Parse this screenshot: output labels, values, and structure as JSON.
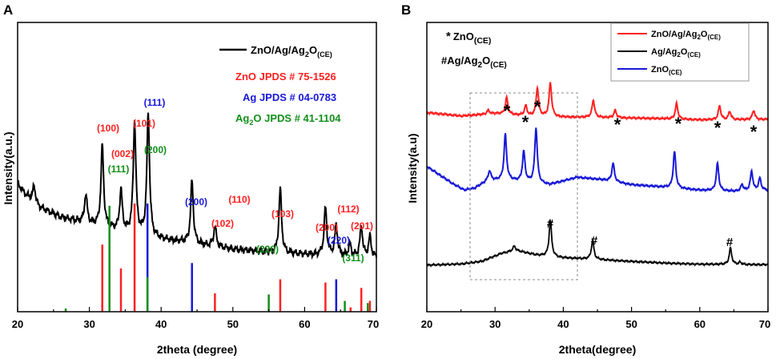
{
  "panels": {
    "A": {
      "letter": "A",
      "xlabel": "2theta (degree)",
      "ylabel": "Intensity(a.u.)",
      "xticks": [
        "20",
        "30",
        "40",
        "50",
        "60",
        "70"
      ],
      "legend": {
        "sample": {
          "base": "ZnO/Ag/Ag",
          "sub1": "2",
          "mid": "O",
          "sub2": "(CE)"
        },
        "refs": [
          {
            "text": "ZnO JPDS # 75-1526",
            "color": "#ff2020"
          },
          {
            "text": "Ag JPDS # 04-0783",
            "color": "#1818d8"
          },
          {
            "base": "Ag",
            "sub": "2",
            "rest": "O JPDS # 41-1104",
            "color": "#11901a"
          }
        ]
      },
      "peak_labels": [
        {
          "text": "(111)",
          "color": "#1818d8"
        },
        {
          "text": "(100)",
          "color": "#ff2020"
        },
        {
          "text": "(101)",
          "color": "#ff2020"
        },
        {
          "text": "(002)",
          "color": "#ff2020"
        },
        {
          "text": "(200)",
          "color": "#11901a"
        },
        {
          "text": "(111)",
          "color": "#11901a"
        },
        {
          "text": "(200)",
          "color": "#1818d8"
        },
        {
          "text": "(110)",
          "color": "#ff2020"
        },
        {
          "text": "(102)",
          "color": "#ff2020"
        },
        {
          "text": "(103)",
          "color": "#ff2020"
        },
        {
          "text": "(112)",
          "color": "#ff2020"
        },
        {
          "text": "(200)",
          "color": "#ff2020"
        },
        {
          "text": "(201)",
          "color": "#ff2020"
        },
        {
          "text": "(220)",
          "color": "#11901a"
        },
        {
          "text": "(220)",
          "color": "#1818d8"
        },
        {
          "text": "(311)",
          "color": "#11901a"
        }
      ]
    },
    "B": {
      "letter": "B",
      "xlabel": "2theta(degree)",
      "ylabel": "Intensity(a.u)",
      "xticks": [
        "20",
        "30",
        "40",
        "50",
        "60",
        "70"
      ],
      "annot1": {
        "star": "*",
        "base": "ZnO",
        "sub": "(CE)"
      },
      "annot2": {
        "hash": "#",
        "base": "Ag/Ag",
        "sub1": "2",
        "mid": "O",
        "sub2": "(CE)"
      },
      "legend": [
        {
          "base": "ZnO/Ag/Ag",
          "sub1": "2",
          "mid": "O",
          "sub2": "(CE)",
          "color": "#ff2020"
        },
        {
          "base": "Ag/Ag",
          "sub1": "2",
          "mid": "O",
          "sub2": "(CE)",
          "color": "#000000"
        },
        {
          "base": "ZnO",
          "sub1": "(CE)",
          "mid": "",
          "sub2": "",
          "color": "#1818d8"
        }
      ],
      "star_symbol": "*",
      "hash_symbol": "#"
    }
  },
  "chart_data": [
    {
      "type": "line",
      "title": "A",
      "xlabel": "2theta (degree)",
      "ylabel": "Intensity(a.u.)",
      "xlim": [
        20,
        70
      ],
      "series": [
        {
          "name": "ZnO/Ag/Ag2O(CE)",
          "color": "#000000",
          "baseline": [
            [
              20,
              0.6
            ],
            [
              21,
              0.54
            ],
            [
              23,
              0.46
            ],
            [
              26,
              0.4
            ],
            [
              30,
              0.36
            ],
            [
              35,
              0.31
            ],
            [
              40,
              0.27
            ],
            [
              45,
              0.24
            ],
            [
              50,
              0.21
            ],
            [
              55,
              0.19
            ],
            [
              60,
              0.18
            ],
            [
              65,
              0.17
            ],
            [
              70,
              0.16
            ]
          ],
          "peaks": [
            [
              22.3,
              0.1
            ],
            [
              29.5,
              0.17
            ],
            [
              31.8,
              0.48
            ],
            [
              34.4,
              0.24
            ],
            [
              36.3,
              0.67
            ],
            [
              38.2,
              0.73
            ],
            [
              44.3,
              0.37
            ],
            [
              47.5,
              0.12
            ],
            [
              56.6,
              0.38
            ],
            [
              62.9,
              0.28
            ],
            [
              64.4,
              0.18
            ],
            [
              66.3,
              0.07
            ],
            [
              67.9,
              0.18
            ],
            [
              69.1,
              0.12
            ]
          ]
        }
      ],
      "reference_lines": [
        {
          "name": "ZnO JPDS # 75-1526",
          "color": "#ff2020",
          "lines": [
            [
              31.8,
              0.62
            ],
            [
              34.4,
              0.4
            ],
            [
              36.3,
              1.0
            ],
            [
              47.5,
              0.17
            ],
            [
              56.6,
              0.3
            ],
            [
              62.9,
              0.27
            ],
            [
              66.4,
              0.04
            ],
            [
              67.9,
              0.22
            ],
            [
              69.1,
              0.1
            ]
          ]
        },
        {
          "name": "Ag JPDS # 04-0783",
          "color": "#1818d8",
          "lines": [
            [
              38.1,
              1.0
            ],
            [
              44.3,
              0.45
            ],
            [
              64.4,
              0.3
            ]
          ]
        },
        {
          "name": "Ag2O JPDS # 41-1104",
          "color": "#11901a",
          "lines": [
            [
              26.7,
              0.03
            ],
            [
              32.8,
              0.98
            ],
            [
              38.1,
              0.32
            ],
            [
              55.0,
              0.16
            ],
            [
              65.6,
              0.1
            ],
            [
              68.8,
              0.08
            ]
          ]
        }
      ]
    },
    {
      "type": "line",
      "title": "B",
      "xlabel": "2theta(degree)",
      "ylabel": "Intensity(a.u)",
      "xlim": [
        20,
        70
      ],
      "series": [
        {
          "name": "ZnO/Ag/Ag2O(CE)",
          "color": "#ff2020",
          "offset": 3.0,
          "baseline": [
            [
              20,
              0.38
            ],
            [
              25,
              0.3
            ],
            [
              30,
              0.36
            ],
            [
              35,
              0.3
            ],
            [
              40,
              0.28
            ],
            [
              45,
              0.27
            ],
            [
              50,
              0.26
            ],
            [
              55,
              0.24
            ],
            [
              60,
              0.22
            ],
            [
              65,
              0.22
            ],
            [
              70,
              0.23
            ]
          ],
          "peaks": [
            [
              29.0,
              0.08
            ],
            [
              31.7,
              0.36
            ],
            [
              34.5,
              0.22
            ],
            [
              36.2,
              0.62
            ],
            [
              38.1,
              0.74
            ],
            [
              44.4,
              0.38
            ],
            [
              47.6,
              0.16
            ],
            [
              56.6,
              0.34
            ],
            [
              62.9,
              0.3
            ],
            [
              64.4,
              0.18
            ],
            [
              67.9,
              0.2
            ]
          ]
        },
        {
          "name": "ZnO(CE)",
          "color": "#1818d8",
          "offset": 1.6,
          "baseline": [
            [
              20,
              0.6
            ],
            [
              22,
              0.4
            ],
            [
              24,
              0.2
            ],
            [
              25.5,
              0.08
            ],
            [
              27,
              0.12
            ],
            [
              29,
              0.3
            ],
            [
              32,
              0.3
            ],
            [
              38,
              0.2
            ],
            [
              42,
              0.36
            ],
            [
              46,
              0.3
            ],
            [
              50,
              0.2
            ],
            [
              55,
              0.14
            ],
            [
              60,
              0.08
            ],
            [
              65,
              0.05
            ],
            [
              70,
              0.08
            ]
          ],
          "peaks": [
            [
              29.2,
              0.2
            ],
            [
              31.5,
              1.0
            ],
            [
              34.2,
              0.66
            ],
            [
              36.0,
              1.2
            ],
            [
              47.3,
              0.4
            ],
            [
              56.3,
              0.8
            ],
            [
              62.6,
              0.6
            ],
            [
              66.2,
              0.14
            ],
            [
              67.6,
              0.42
            ],
            [
              68.8,
              0.26
            ]
          ]
        },
        {
          "name": "Ag/Ag2O(CE)",
          "color": "#000000",
          "offset": 0.0,
          "baseline": [
            [
              20,
              0.04
            ],
            [
              25,
              0.06
            ],
            [
              28,
              0.12
            ],
            [
              31,
              0.3
            ],
            [
              33,
              0.36
            ],
            [
              36,
              0.26
            ],
            [
              40,
              0.2
            ],
            [
              45,
              0.16
            ],
            [
              50,
              0.12
            ],
            [
              55,
              0.08
            ],
            [
              60,
              0.06
            ],
            [
              65,
              0.05
            ],
            [
              70,
              0.05
            ]
          ],
          "peaks": [
            [
              32.8,
              0.1
            ],
            [
              38.1,
              0.78
            ],
            [
              44.3,
              0.42
            ],
            [
              64.5,
              0.36
            ],
            [
              65.9,
              0.05
            ]
          ]
        }
      ]
    }
  ]
}
